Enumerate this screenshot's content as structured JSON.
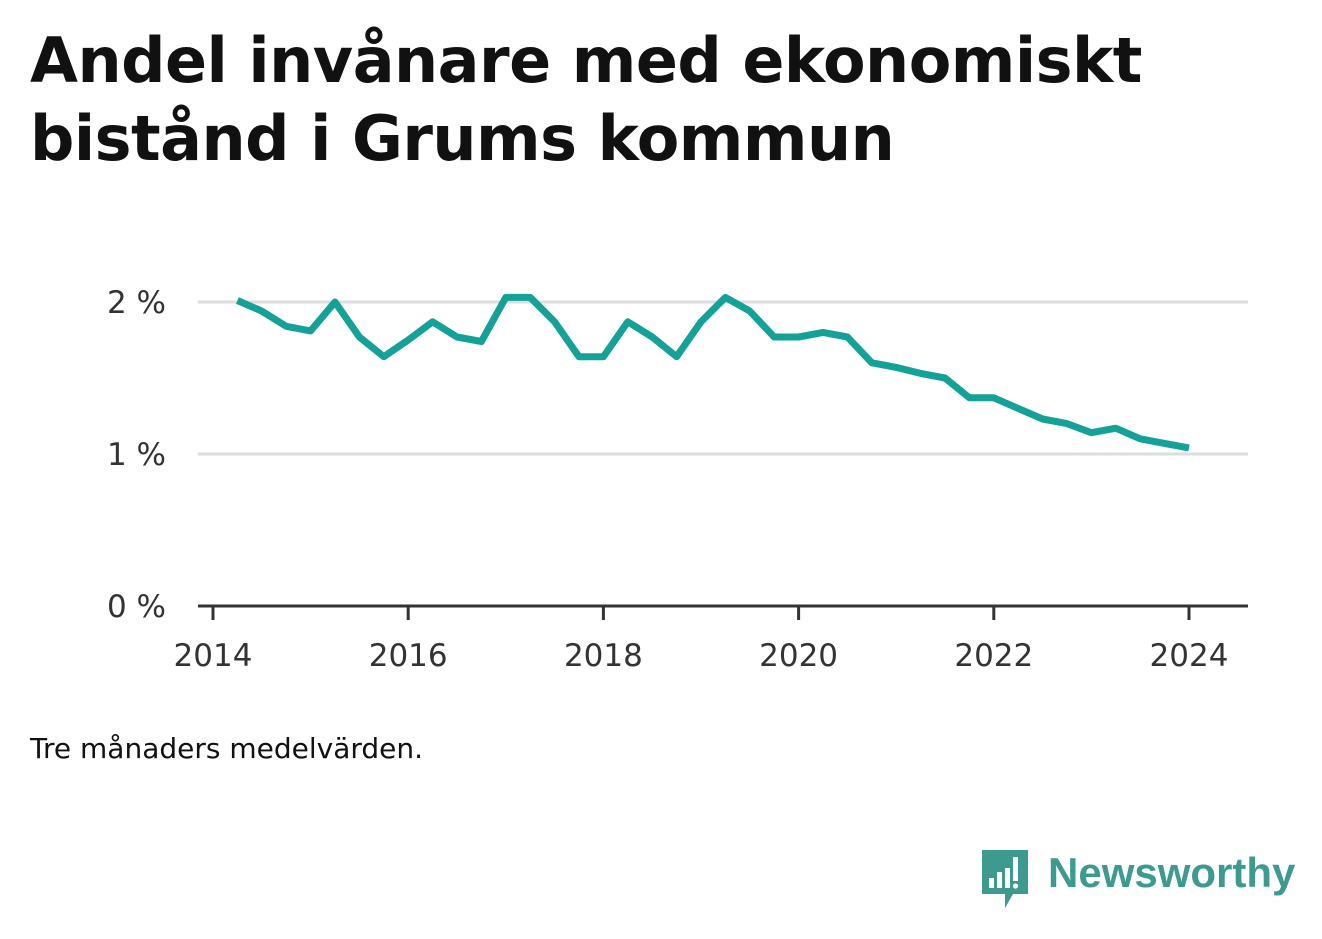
{
  "title": "Andel invånare med ekonomiskt bistånd i Grums kommun",
  "note": "Tre månaders medelvärden.",
  "brand": {
    "name": "Newsworthy",
    "icon": "bar-chart-speech-bubble-icon",
    "color": "#3d9a8f"
  },
  "colors": {
    "line": "#14a197",
    "grid": "#dddddd",
    "axis": "#333333"
  },
  "chart_data": {
    "type": "line",
    "title": "Andel invånare med ekonomiskt bistånd i Grums kommun",
    "xlabel": "",
    "ylabel": "",
    "x_ticks": [
      "2014",
      "2016",
      "2018",
      "2020",
      "2022",
      "2024"
    ],
    "y_ticks": [
      "0 %",
      "1 %",
      "2 %"
    ],
    "ylim": [
      0,
      2.2
    ],
    "xlim": [
      "2014-01",
      "2024-09"
    ],
    "grid": true,
    "legend": "none",
    "series": [
      {
        "x": [
          "2014-04",
          "2014-07",
          "2014-10",
          "2015-01",
          "2015-04",
          "2015-07",
          "2015-10",
          "2016-01",
          "2016-04",
          "2016-07",
          "2016-10",
          "2017-01",
          "2017-04",
          "2017-07",
          "2017-10",
          "2018-01",
          "2018-04",
          "2018-07",
          "2018-10",
          "2019-01",
          "2019-04",
          "2019-07",
          "2019-10",
          "2020-01",
          "2020-04",
          "2020-07",
          "2020-10",
          "2021-01",
          "2021-04",
          "2021-07",
          "2021-10",
          "2022-01",
          "2022-04",
          "2022-07",
          "2022-10",
          "2023-01",
          "2023-04",
          "2023-07",
          "2023-10",
          "2024-01"
        ],
        "values": [
          2.01,
          1.94,
          1.84,
          1.81,
          2.0,
          1.77,
          1.64,
          1.75,
          1.87,
          1.77,
          1.74,
          2.03,
          2.03,
          1.87,
          1.64,
          1.64,
          1.87,
          1.77,
          1.64,
          1.87,
          2.03,
          1.94,
          1.77,
          1.77,
          1.8,
          1.77,
          1.6,
          1.57,
          1.53,
          1.5,
          1.37,
          1.37,
          1.3,
          1.23,
          1.2,
          1.14,
          1.17,
          1.1,
          1.07,
          1.04
        ]
      }
    ]
  }
}
